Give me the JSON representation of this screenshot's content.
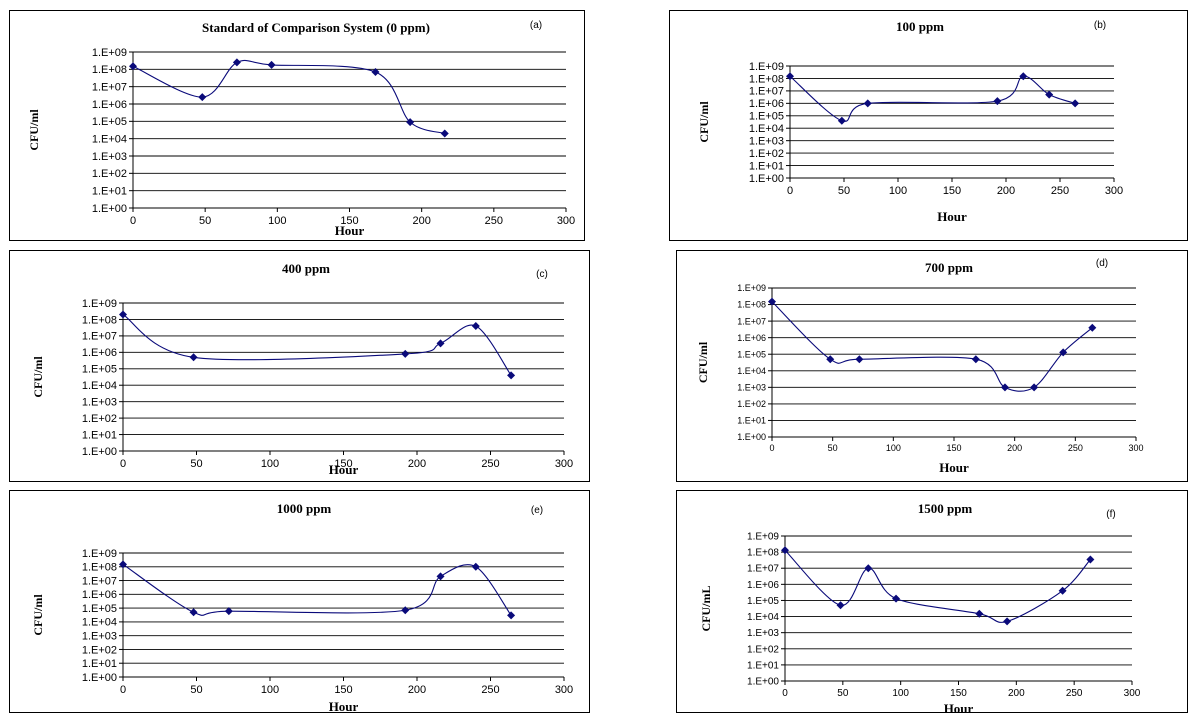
{
  "colors": {
    "series": "#0a0a7a",
    "marker": "#0a0a7a",
    "grid": "#000000"
  },
  "chart_data": [
    {
      "type": "line",
      "title": "Standard of Comparison System  (0 ppm)",
      "panel_label": "(a)",
      "xlabel": "Hour",
      "ylabel": "CFU/ml",
      "xlim": [
        0,
        300
      ],
      "xticks": [
        "0",
        "50",
        "100",
        "150",
        "200",
        "250",
        "300"
      ],
      "ylim_log10": [
        0,
        9
      ],
      "yticks": [
        "1.E+00",
        "1.E+01",
        "1.E+02",
        "1.E+03",
        "1.E+04",
        "1.E+05",
        "1.E+06",
        "1.E+07",
        "1.E+08",
        "1.E+09"
      ],
      "y_scale": "log",
      "grid": true,
      "x": [
        0,
        48,
        72,
        96,
        168,
        192,
        216
      ],
      "y": [
        150000000,
        2500000,
        250000000,
        180000000,
        70000000,
        90000,
        20000
      ]
    },
    {
      "type": "line",
      "title": "100 ppm",
      "panel_label": "(b)",
      "xlabel": "Hour",
      "ylabel": "CFU/ml",
      "xlim": [
        0,
        300
      ],
      "xticks": [
        "0",
        "50",
        "100",
        "150",
        "200",
        "250",
        "300"
      ],
      "ylim_log10": [
        0,
        9
      ],
      "yticks": [
        "1.E+00",
        "1.E+01",
        "1.E+02",
        "1.E+03",
        "1.E+04",
        "1.E+05",
        "1.E+06",
        "1.E+07",
        "1.E+08",
        "1.E+09"
      ],
      "y_scale": "log",
      "grid": true,
      "x": [
        0,
        48,
        72,
        192,
        216,
        240,
        264
      ],
      "y": [
        150000000,
        40000,
        1000000,
        1500000,
        150000000,
        5000000,
        1000000
      ]
    },
    {
      "type": "line",
      "title": "400 ppm",
      "panel_label": "(c)",
      "xlabel": "Hour",
      "ylabel": "CFU/ml",
      "xlim": [
        0,
        300
      ],
      "xticks": [
        "0",
        "50",
        "100",
        "150",
        "200",
        "250",
        "300"
      ],
      "ylim_log10": [
        0,
        9
      ],
      "yticks": [
        "1.E+00",
        "1.E+01",
        "1.E+02",
        "1.E+03",
        "1.E+04",
        "1.E+05",
        "1.E+06",
        "1.E+07",
        "1.E+08",
        "1.E+09"
      ],
      "y_scale": "log",
      "grid": true,
      "x": [
        0,
        48,
        192,
        216,
        240,
        264
      ],
      "y": [
        200000000,
        500000,
        800000,
        3500000,
        40000000,
        40000
      ]
    },
    {
      "type": "line",
      "title": "700 ppm",
      "panel_label": "(d)",
      "xlabel": "Hour",
      "ylabel": "CFU/ml",
      "xlim": [
        0,
        300
      ],
      "xticks": [
        "0",
        "50",
        "100",
        "150",
        "200",
        "250",
        "300"
      ],
      "ylim_log10": [
        0,
        9
      ],
      "yticks": [
        "1.E+00",
        "1.E+01",
        "1.E+02",
        "1.E+03",
        "1.E+04",
        "1.E+05",
        "1.E+06",
        "1.E+07",
        "1.E+08",
        "1.E+09"
      ],
      "y_scale": "log",
      "grid": true,
      "x": [
        0,
        48,
        72,
        168,
        192,
        216,
        240,
        264
      ],
      "y": [
        150000000,
        50000,
        50000,
        50000,
        1000,
        1000,
        130000,
        4000000
      ]
    },
    {
      "type": "line",
      "title": "1000 ppm",
      "panel_label": "(e)",
      "xlabel": "Hour",
      "ylabel": "CFU/ml",
      "xlim": [
        0,
        300
      ],
      "xticks": [
        "0",
        "50",
        "100",
        "150",
        "200",
        "250",
        "300"
      ],
      "ylim_log10": [
        0,
        9
      ],
      "yticks": [
        "1.E+00",
        "1.E+01",
        "1.E+02",
        "1.E+03",
        "1.E+04",
        "1.E+05",
        "1.E+06",
        "1.E+07",
        "1.E+08",
        "1.E+09"
      ],
      "y_scale": "log",
      "grid": true,
      "x": [
        0,
        48,
        72,
        192,
        216,
        240,
        264
      ],
      "y": [
        150000000,
        50000,
        60000,
        70000,
        20000000,
        100000000,
        30000
      ]
    },
    {
      "type": "line",
      "title": "1500 ppm",
      "panel_label": "(f)",
      "xlabel": "Hour",
      "ylabel": "CFU/mL",
      "xlim": [
        0,
        300
      ],
      "xticks": [
        "0",
        "50",
        "100",
        "150",
        "200",
        "250",
        "300"
      ],
      "ylim_log10": [
        0,
        9
      ],
      "yticks": [
        "1.E+00",
        "1.E+01",
        "1.E+02",
        "1.E+03",
        "1.E+04",
        "1.E+05",
        "1.E+06",
        "1.E+07",
        "1.E+08",
        "1.E+09"
      ],
      "y_scale": "log",
      "grid": true,
      "x": [
        0,
        48,
        72,
        96,
        168,
        192,
        240,
        264
      ],
      "y": [
        130000000,
        50000,
        10000000,
        130000,
        15000,
        5000,
        400000,
        35000000
      ]
    }
  ]
}
